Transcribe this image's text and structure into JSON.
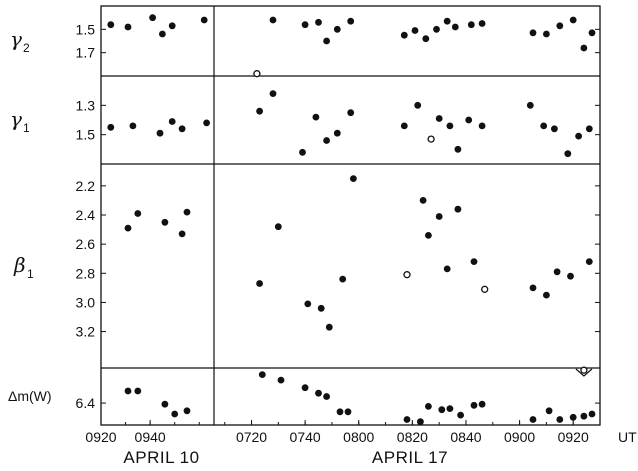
{
  "chart_data": {
    "type": "scatter",
    "x_unit": "UT",
    "x_segments": [
      {
        "date_label": "APRIL 10",
        "tick_labels": [
          "0920",
          "0940"
        ],
        "xlim": [
          "09:20",
          "10:06"
        ]
      },
      {
        "date_label": "APRIL 17",
        "tick_labels": [
          "0720",
          "0740",
          "0800",
          "0820",
          "0840",
          "0900",
          "0920"
        ],
        "xlim": [
          "07:06",
          "09:30"
        ]
      }
    ],
    "x_unit_label": "UT",
    "panels": [
      {
        "id": "gamma2",
        "label": "γ",
        "label_sub": "2",
        "ylim": [
          1.3,
          1.9
        ],
        "y_inverted": true,
        "yticks": [
          1.5,
          1.7
        ],
        "ytick_labels": [
          "1.5",
          "1.7"
        ],
        "points": [
          {
            "segment": 0,
            "t": "09:24",
            "v": 1.46
          },
          {
            "segment": 0,
            "t": "09:31",
            "v": 1.48
          },
          {
            "segment": 0,
            "t": "09:41",
            "v": 1.4
          },
          {
            "segment": 0,
            "t": "09:45",
            "v": 1.54
          },
          {
            "segment": 0,
            "t": "09:49",
            "v": 1.47
          },
          {
            "segment": 0,
            "t": "10:02",
            "v": 1.42
          },
          {
            "segment": 1,
            "t": "07:22",
            "v": 1.88,
            "open": true
          },
          {
            "segment": 1,
            "t": "07:28",
            "v": 1.42
          },
          {
            "segment": 1,
            "t": "07:40",
            "v": 1.46
          },
          {
            "segment": 1,
            "t": "07:45",
            "v": 1.44
          },
          {
            "segment": 1,
            "t": "07:48",
            "v": 1.6
          },
          {
            "segment": 1,
            "t": "07:52",
            "v": 1.5
          },
          {
            "segment": 1,
            "t": "07:57",
            "v": 1.43
          },
          {
            "segment": 1,
            "t": "08:17",
            "v": 1.55
          },
          {
            "segment": 1,
            "t": "08:21",
            "v": 1.51
          },
          {
            "segment": 1,
            "t": "08:25",
            "v": 1.58
          },
          {
            "segment": 1,
            "t": "08:29",
            "v": 1.5
          },
          {
            "segment": 1,
            "t": "08:33",
            "v": 1.43
          },
          {
            "segment": 1,
            "t": "08:36",
            "v": 1.48
          },
          {
            "segment": 1,
            "t": "08:42",
            "v": 1.46
          },
          {
            "segment": 1,
            "t": "08:46",
            "v": 1.45
          },
          {
            "segment": 1,
            "t": "09:05",
            "v": 1.53
          },
          {
            "segment": 1,
            "t": "09:10",
            "v": 1.54
          },
          {
            "segment": 1,
            "t": "09:15",
            "v": 1.47
          },
          {
            "segment": 1,
            "t": "09:20",
            "v": 1.42
          },
          {
            "segment": 1,
            "t": "09:24",
            "v": 1.66
          },
          {
            "segment": 1,
            "t": "09:27",
            "v": 1.53
          }
        ]
      },
      {
        "id": "gamma1",
        "label": "γ",
        "label_sub": "1",
        "ylim": [
          1.1,
          1.7
        ],
        "y_inverted": true,
        "yticks": [
          1.3,
          1.5
        ],
        "ytick_labels": [
          "1.3",
          "1.5"
        ],
        "points": [
          {
            "segment": 0,
            "t": "09:24",
            "v": 1.45
          },
          {
            "segment": 0,
            "t": "09:33",
            "v": 1.44
          },
          {
            "segment": 0,
            "t": "09:44",
            "v": 1.49
          },
          {
            "segment": 0,
            "t": "09:49",
            "v": 1.41
          },
          {
            "segment": 0,
            "t": "09:53",
            "v": 1.46
          },
          {
            "segment": 0,
            "t": "10:03",
            "v": 1.42
          },
          {
            "segment": 1,
            "t": "07:23",
            "v": 1.34
          },
          {
            "segment": 1,
            "t": "07:28",
            "v": 1.22
          },
          {
            "segment": 1,
            "t": "07:39",
            "v": 1.62
          },
          {
            "segment": 1,
            "t": "07:44",
            "v": 1.38
          },
          {
            "segment": 1,
            "t": "07:48",
            "v": 1.54
          },
          {
            "segment": 1,
            "t": "07:52",
            "v": 1.49
          },
          {
            "segment": 1,
            "t": "07:57",
            "v": 1.35
          },
          {
            "segment": 1,
            "t": "08:17",
            "v": 1.44
          },
          {
            "segment": 1,
            "t": "08:22",
            "v": 1.3
          },
          {
            "segment": 1,
            "t": "08:27",
            "v": 1.53,
            "open": true
          },
          {
            "segment": 1,
            "t": "08:30",
            "v": 1.39
          },
          {
            "segment": 1,
            "t": "08:34",
            "v": 1.44
          },
          {
            "segment": 1,
            "t": "08:37",
            "v": 1.6
          },
          {
            "segment": 1,
            "t": "08:41",
            "v": 1.4
          },
          {
            "segment": 1,
            "t": "08:46",
            "v": 1.44
          },
          {
            "segment": 1,
            "t": "09:04",
            "v": 1.3
          },
          {
            "segment": 1,
            "t": "09:09",
            "v": 1.44
          },
          {
            "segment": 1,
            "t": "09:13",
            "v": 1.46
          },
          {
            "segment": 1,
            "t": "09:18",
            "v": 1.63
          },
          {
            "segment": 1,
            "t": "09:22",
            "v": 1.51
          },
          {
            "segment": 1,
            "t": "09:26",
            "v": 1.46
          }
        ]
      },
      {
        "id": "beta1",
        "label": "β",
        "label_sub": "1",
        "ylim": [
          2.05,
          3.45
        ],
        "y_inverted": true,
        "yticks": [
          2.2,
          2.4,
          2.6,
          2.8,
          3.0,
          3.2
        ],
        "ytick_labels": [
          "2.2",
          "2.4",
          "2.6",
          "2.8",
          "3.0",
          "3.2"
        ],
        "points": [
          {
            "segment": 0,
            "t": "09:31",
            "v": 2.49
          },
          {
            "segment": 0,
            "t": "09:35",
            "v": 2.39
          },
          {
            "segment": 0,
            "t": "09:46",
            "v": 2.45
          },
          {
            "segment": 0,
            "t": "09:53",
            "v": 2.53
          },
          {
            "segment": 0,
            "t": "09:55",
            "v": 2.38
          },
          {
            "segment": 1,
            "t": "07:23",
            "v": 2.87
          },
          {
            "segment": 1,
            "t": "07:30",
            "v": 2.48
          },
          {
            "segment": 1,
            "t": "07:41",
            "v": 3.01
          },
          {
            "segment": 1,
            "t": "07:46",
            "v": 3.04
          },
          {
            "segment": 1,
            "t": "07:49",
            "v": 3.17
          },
          {
            "segment": 1,
            "t": "07:54",
            "v": 2.84
          },
          {
            "segment": 1,
            "t": "07:58",
            "v": 2.15
          },
          {
            "segment": 1,
            "t": "08:18",
            "v": 2.81,
            "open": true
          },
          {
            "segment": 1,
            "t": "08:24",
            "v": 2.3
          },
          {
            "segment": 1,
            "t": "08:26",
            "v": 2.54
          },
          {
            "segment": 1,
            "t": "08:30",
            "v": 2.41
          },
          {
            "segment": 1,
            "t": "08:33",
            "v": 2.77
          },
          {
            "segment": 1,
            "t": "08:37",
            "v": 2.36
          },
          {
            "segment": 1,
            "t": "08:43",
            "v": 2.72
          },
          {
            "segment": 1,
            "t": "08:47",
            "v": 2.91,
            "open": true
          },
          {
            "segment": 1,
            "t": "09:05",
            "v": 2.9
          },
          {
            "segment": 1,
            "t": "09:10",
            "v": 2.95
          },
          {
            "segment": 1,
            "t": "09:14",
            "v": 2.79
          },
          {
            "segment": 1,
            "t": "09:19",
            "v": 2.82
          },
          {
            "segment": 1,
            "t": "09:26",
            "v": 2.72
          }
        ]
      },
      {
        "id": "dmw",
        "label": "Δm(W)",
        "label_sub": "",
        "ylim": [
          6.08,
          6.6
        ],
        "y_inverted": true,
        "yticks": [
          6.4
        ],
        "ytick_labels": [
          "6.4"
        ],
        "points": [
          {
            "segment": 0,
            "t": "09:31",
            "v": 6.29
          },
          {
            "segment": 0,
            "t": "09:35",
            "v": 6.29
          },
          {
            "segment": 0,
            "t": "09:46",
            "v": 6.41
          },
          {
            "segment": 0,
            "t": "09:50",
            "v": 6.5
          },
          {
            "segment": 0,
            "t": "09:55",
            "v": 6.47
          },
          {
            "segment": 1,
            "t": "07:24",
            "v": 6.14
          },
          {
            "segment": 1,
            "t": "07:31",
            "v": 6.19
          },
          {
            "segment": 1,
            "t": "07:40",
            "v": 6.26
          },
          {
            "segment": 1,
            "t": "07:45",
            "v": 6.31
          },
          {
            "segment": 1,
            "t": "07:48",
            "v": 6.34
          },
          {
            "segment": 1,
            "t": "07:53",
            "v": 6.48
          },
          {
            "segment": 1,
            "t": "07:56",
            "v": 6.48
          },
          {
            "segment": 1,
            "t": "08:18",
            "v": 6.55
          },
          {
            "segment": 1,
            "t": "08:23",
            "v": 6.57
          },
          {
            "segment": 1,
            "t": "08:26",
            "v": 6.43
          },
          {
            "segment": 1,
            "t": "08:31",
            "v": 6.46
          },
          {
            "segment": 1,
            "t": "08:34",
            "v": 6.45
          },
          {
            "segment": 1,
            "t": "08:38",
            "v": 6.51
          },
          {
            "segment": 1,
            "t": "08:43",
            "v": 6.42
          },
          {
            "segment": 1,
            "t": "08:46",
            "v": 6.41
          },
          {
            "segment": 1,
            "t": "09:05",
            "v": 6.55
          },
          {
            "segment": 1,
            "t": "09:11",
            "v": 6.47
          },
          {
            "segment": 1,
            "t": "09:15",
            "v": 6.55
          },
          {
            "segment": 1,
            "t": "09:20",
            "v": 6.53
          },
          {
            "segment": 1,
            "t": "09:24",
            "v": 6.52
          },
          {
            "segment": 1,
            "t": "09:27",
            "v": 6.5
          },
          {
            "segment": 1,
            "t": "09:24",
            "v": 6.1,
            "open": true
          }
        ]
      }
    ]
  }
}
